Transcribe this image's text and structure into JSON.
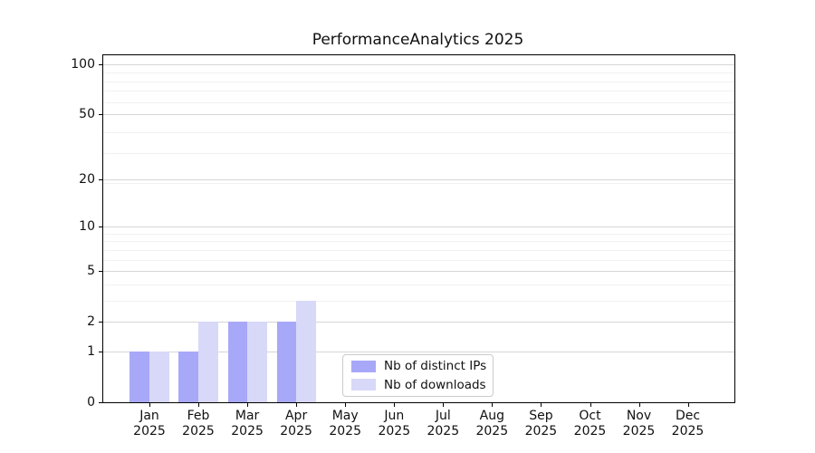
{
  "chart_data": {
    "type": "bar",
    "title": "PerformanceAnalytics 2025",
    "x_months": [
      "Jan",
      "Feb",
      "Mar",
      "Apr",
      "May",
      "Jun",
      "Jul",
      "Aug",
      "Sep",
      "Oct",
      "Nov",
      "Dec"
    ],
    "x_year": "2025",
    "series": [
      {
        "name": "Nb of distinct IPs",
        "color": "#a8a8f8",
        "values": [
          1,
          1,
          2,
          2,
          0,
          0,
          0,
          0,
          0,
          0,
          0,
          0
        ]
      },
      {
        "name": "Nb of downloads",
        "color": "#d8d8f8",
        "values": [
          1,
          2,
          2,
          3,
          0,
          0,
          0,
          0,
          0,
          0,
          0,
          0
        ]
      }
    ],
    "y_ticks": [
      0,
      1,
      2,
      5,
      10,
      20,
      50,
      100
    ],
    "y_minor_gridlines": [
      3,
      4,
      6,
      7,
      8,
      9,
      19,
      29,
      39,
      59,
      69,
      79,
      89,
      99
    ],
    "y_scale": "log10(1+x)",
    "ylim": [
      0,
      113
    ],
    "grid": true,
    "legend_position": "inside lower-center",
    "colors": {
      "major_grid": "#d6d6d6",
      "minor_grid": "#f1f1f1",
      "axis": "#000000",
      "text": "#111111",
      "legend_border": "#cbcbcb",
      "background": "#ffffff"
    }
  }
}
